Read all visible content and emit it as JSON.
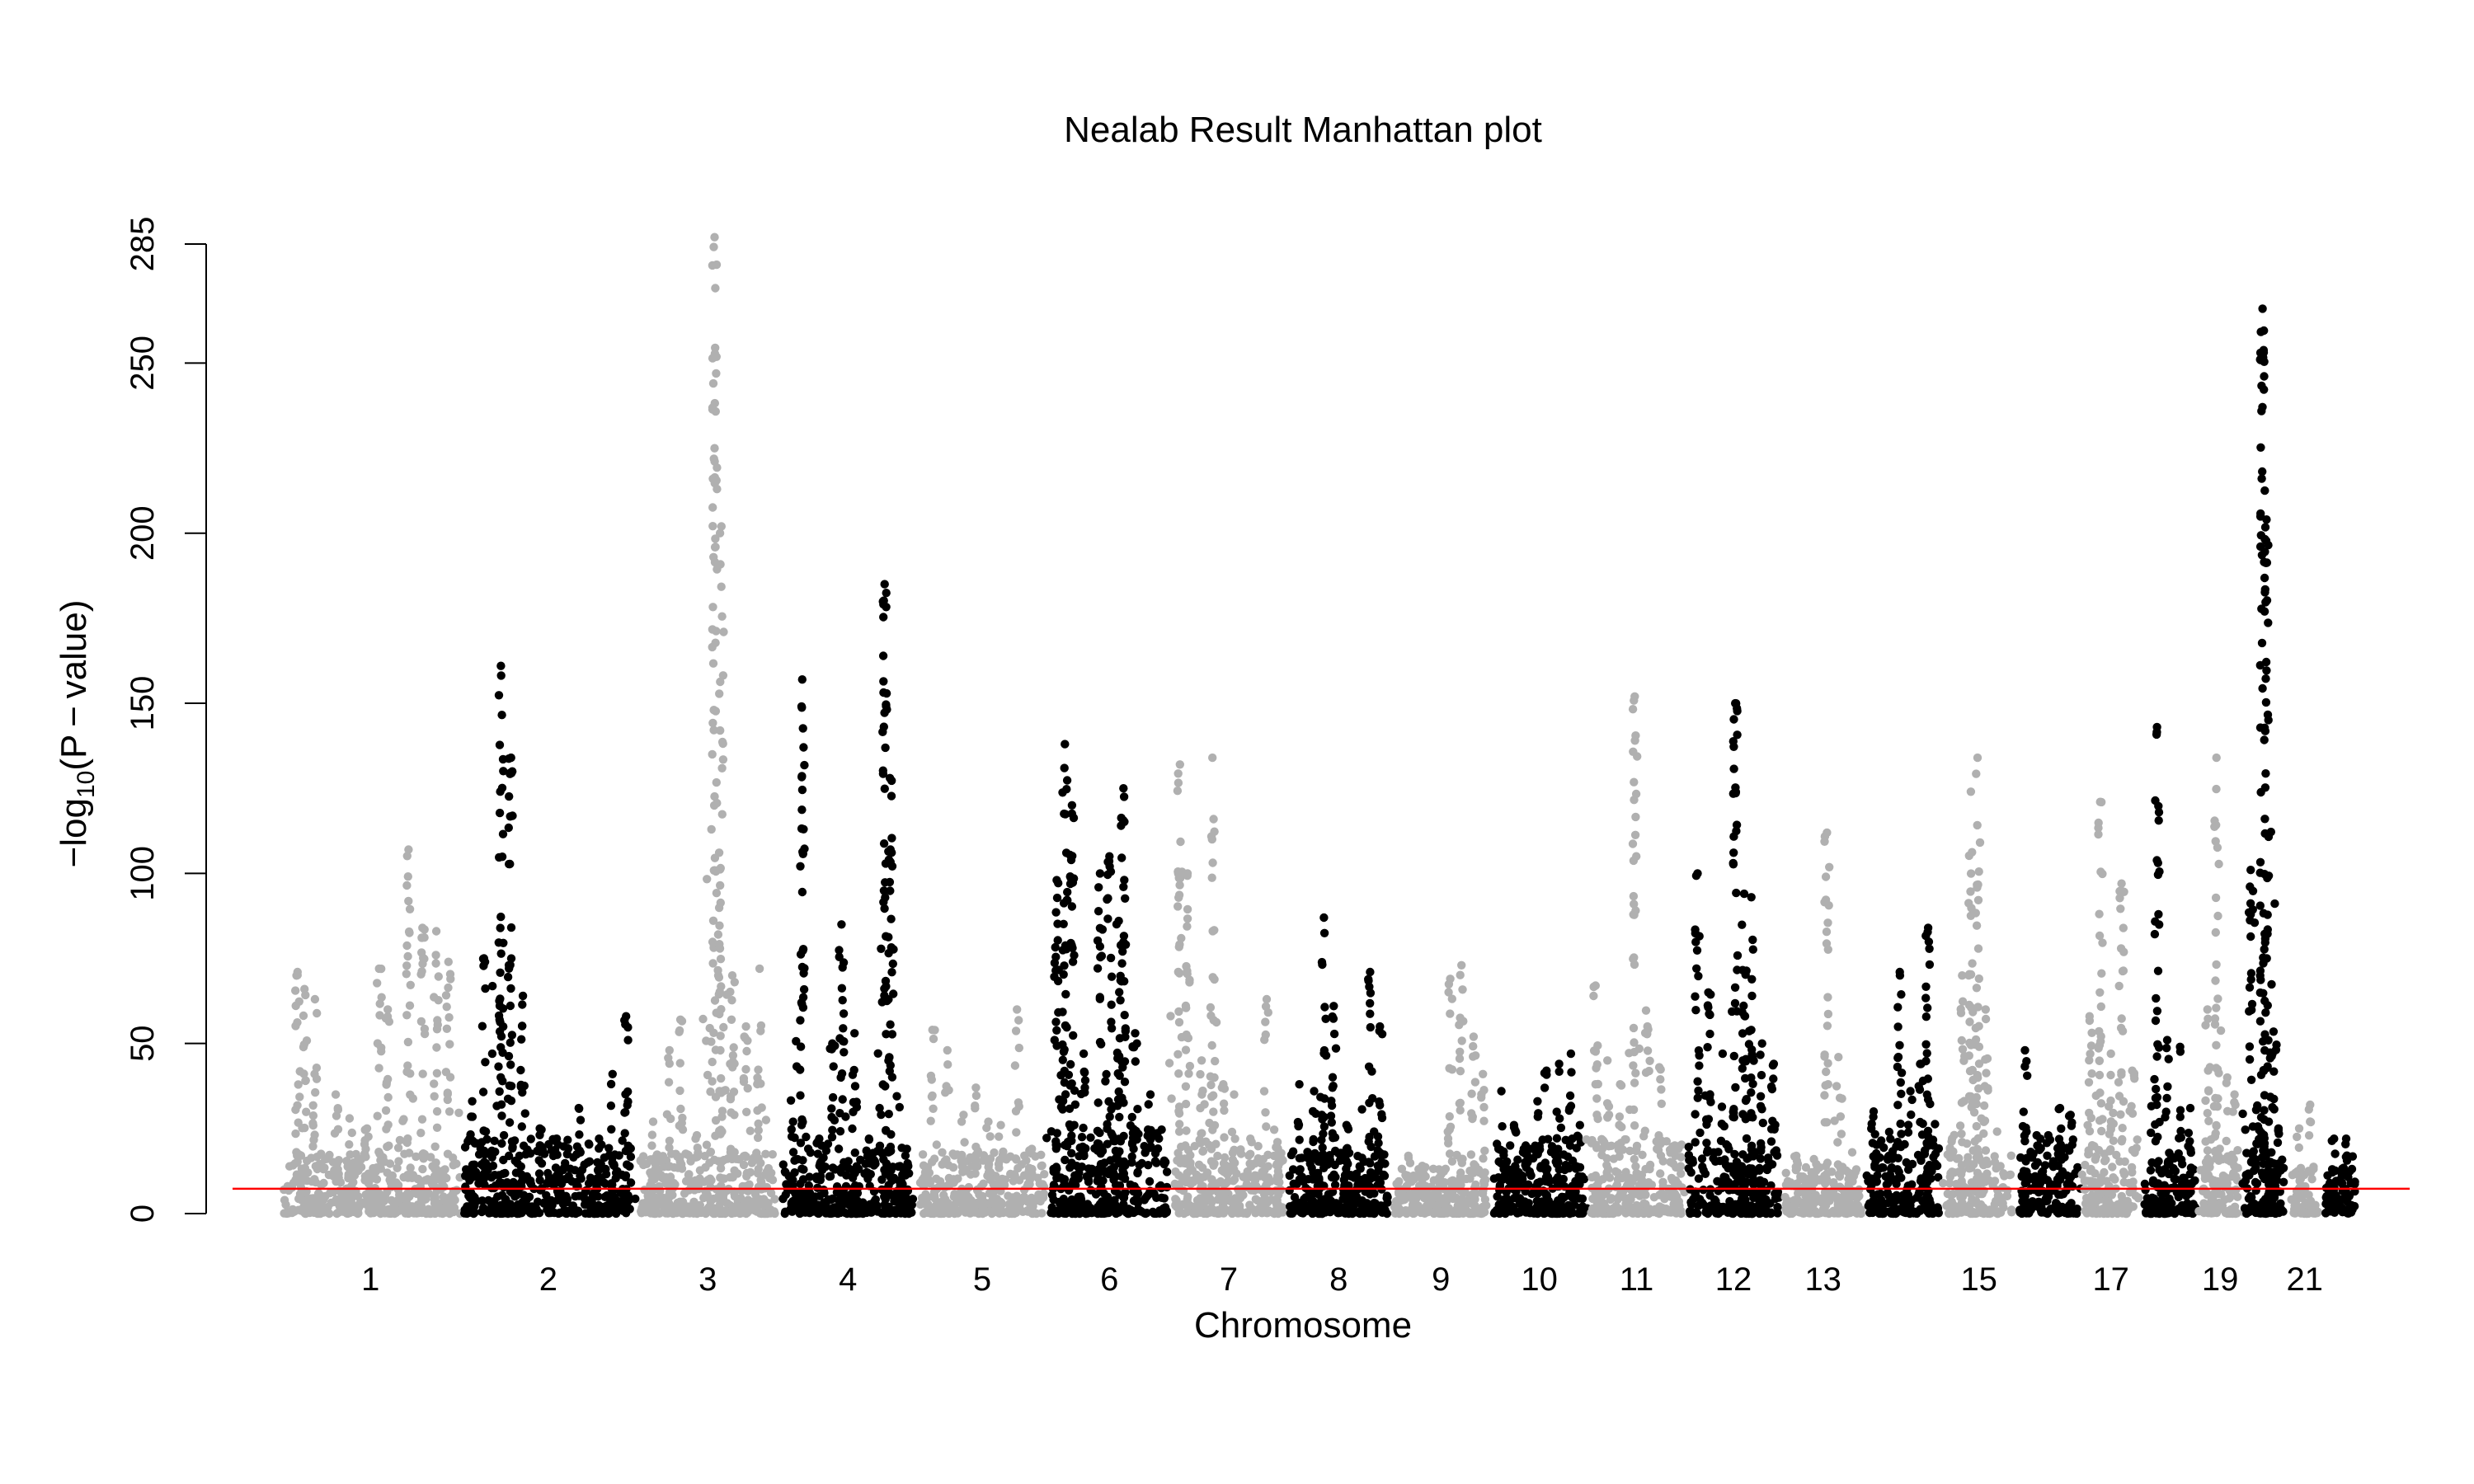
{
  "chart_data": {
    "type": "scatter",
    "subtype": "manhattan",
    "title": "Nealab Result Manhattan plot",
    "xlabel": "Chromosome",
    "ylabel": {
      "prefix": "−log",
      "subscript": "10",
      "suffix": "(P − value)"
    },
    "ylim": [
      0,
      285
    ],
    "yticks": [
      0,
      50,
      100,
      150,
      200,
      250,
      285
    ],
    "grid": false,
    "legend": "none",
    "colors": {
      "odd": "#b0b0b0",
      "even": "#000000",
      "threshold": "#ff0000"
    },
    "threshold": 7.3,
    "xtick_labels": [
      "1",
      "2",
      "3",
      "4",
      "5",
      "6",
      "7",
      "8",
      "9",
      "10",
      "11",
      "12",
      "13",
      "15",
      "17",
      "19",
      "21"
    ],
    "chromosomes": [
      {
        "chr": "1",
        "base": 18,
        "peaks": [
          [
            0.08,
            71
          ],
          [
            0.12,
            66
          ],
          [
            0.18,
            63
          ],
          [
            0.3,
            35
          ],
          [
            0.38,
            28
          ],
          [
            0.48,
            25
          ],
          [
            0.55,
            72
          ],
          [
            0.6,
            60
          ],
          [
            0.72,
            107
          ],
          [
            0.8,
            84
          ],
          [
            0.88,
            83
          ],
          [
            0.95,
            74
          ]
        ]
      },
      {
        "chr": "2",
        "base": 22,
        "peaks": [
          [
            0.05,
            33
          ],
          [
            0.12,
            75
          ],
          [
            0.22,
            161
          ],
          [
            0.28,
            134
          ],
          [
            0.35,
            64
          ],
          [
            0.45,
            25
          ],
          [
            0.55,
            22
          ],
          [
            0.68,
            31
          ],
          [
            0.8,
            22
          ],
          [
            0.88,
            41
          ],
          [
            0.96,
            58
          ]
        ]
      },
      {
        "chr": "3",
        "base": 18,
        "peaks": [
          [
            0.1,
            27
          ],
          [
            0.22,
            48
          ],
          [
            0.3,
            57
          ],
          [
            0.42,
            23
          ],
          [
            0.55,
            287
          ],
          [
            0.6,
            202
          ],
          [
            0.68,
            70
          ],
          [
            0.78,
            55
          ],
          [
            0.88,
            72
          ]
        ]
      },
      {
        "chr": "4",
        "base": 20,
        "peaks": [
          [
            0.08,
            27
          ],
          [
            0.15,
            157
          ],
          [
            0.28,
            22
          ],
          [
            0.38,
            50
          ],
          [
            0.45,
            85
          ],
          [
            0.55,
            53
          ],
          [
            0.66,
            22
          ],
          [
            0.78,
            185
          ],
          [
            0.82,
            128
          ],
          [
            0.95,
            19
          ]
        ]
      },
      {
        "chr": "5",
        "base": 18,
        "peaks": [
          [
            0.1,
            54
          ],
          [
            0.22,
            48
          ],
          [
            0.35,
            29
          ],
          [
            0.45,
            37
          ],
          [
            0.55,
            27
          ],
          [
            0.65,
            26
          ],
          [
            0.78,
            60
          ],
          [
            0.9,
            19
          ]
        ]
      },
      {
        "chr": "6",
        "base": 25,
        "peaks": [
          [
            0.05,
            98
          ],
          [
            0.12,
            138
          ],
          [
            0.18,
            120
          ],
          [
            0.28,
            47
          ],
          [
            0.42,
            100
          ],
          [
            0.5,
            105
          ],
          [
            0.58,
            86
          ],
          [
            0.62,
            125
          ],
          [
            0.72,
            53
          ],
          [
            0.85,
            35
          ]
        ]
      },
      {
        "chr": "7",
        "base": 22,
        "peaks": [
          [
            0.05,
            132
          ],
          [
            0.12,
            100
          ],
          [
            0.25,
            45
          ],
          [
            0.35,
            134
          ],
          [
            0.45,
            38
          ],
          [
            0.55,
            35
          ],
          [
            0.7,
            22
          ],
          [
            0.85,
            63
          ],
          [
            0.95,
            21
          ]
        ]
      },
      {
        "chr": "8",
        "base": 20,
        "peaks": [
          [
            0.1,
            38
          ],
          [
            0.25,
            36
          ],
          [
            0.35,
            87
          ],
          [
            0.45,
            61
          ],
          [
            0.58,
            26
          ],
          [
            0.7,
            10
          ],
          [
            0.82,
            71
          ],
          [
            0.92,
            55
          ]
        ]
      },
      {
        "chr": "9",
        "base": 14,
        "peaks": [
          [
            0.15,
            17
          ],
          [
            0.3,
            14
          ],
          [
            0.48,
            13
          ],
          [
            0.6,
            69
          ],
          [
            0.72,
            73
          ],
          [
            0.85,
            52
          ],
          [
            0.95,
            41
          ]
        ]
      },
      {
        "chr": "10",
        "base": 22,
        "peaks": [
          [
            0.08,
            36
          ],
          [
            0.22,
            26
          ],
          [
            0.35,
            20
          ],
          [
            0.48,
            33
          ],
          [
            0.58,
            42
          ],
          [
            0.72,
            44
          ],
          [
            0.85,
            47
          ],
          [
            0.95,
            26
          ]
        ]
      },
      {
        "chr": "11",
        "base": 22,
        "peaks": [
          [
            0.05,
            67
          ],
          [
            0.18,
            45
          ],
          [
            0.32,
            38
          ],
          [
            0.48,
            152
          ],
          [
            0.62,
            55
          ],
          [
            0.75,
            43
          ],
          [
            0.92,
            20
          ]
        ]
      },
      {
        "chr": "12",
        "base": 22,
        "peaks": [
          [
            0.1,
            100
          ],
          [
            0.22,
            65
          ],
          [
            0.38,
            47
          ],
          [
            0.52,
            150
          ],
          [
            0.62,
            94
          ],
          [
            0.7,
            93
          ],
          [
            0.82,
            50
          ],
          [
            0.95,
            44
          ]
        ]
      },
      {
        "chr": "13",
        "base": 14,
        "peaks": [
          [
            0.15,
            17
          ],
          [
            0.38,
            16
          ],
          [
            0.55,
            112
          ],
          [
            0.72,
            34
          ],
          [
            0.88,
            18
          ]
        ]
      },
      {
        "chr": "14",
        "base": 22,
        "peaks": [
          [
            0.08,
            30
          ],
          [
            0.3,
            24
          ],
          [
            0.45,
            71
          ],
          [
            0.6,
            36
          ],
          [
            0.75,
            44
          ],
          [
            0.85,
            84
          ]
        ]
      },
      {
        "chr": "15",
        "base": 18,
        "peaks": [
          [
            0.1,
            22
          ],
          [
            0.25,
            70
          ],
          [
            0.38,
            124
          ],
          [
            0.48,
            134
          ],
          [
            0.6,
            60
          ]
        ]
      },
      {
        "chr": "16",
        "base": 22,
        "peaks": [
          [
            0.1,
            48
          ],
          [
            0.3,
            23
          ],
          [
            0.5,
            23
          ],
          [
            0.7,
            31
          ],
          [
            0.88,
            29
          ]
        ]
      },
      {
        "chr": "17",
        "base": 22,
        "peaks": [
          [
            0.1,
            58
          ],
          [
            0.3,
            121
          ],
          [
            0.5,
            47
          ],
          [
            0.7,
            97
          ],
          [
            0.9,
            42
          ]
        ]
      },
      {
        "chr": "18",
        "base": 16,
        "peaks": [
          [
            0.25,
            143
          ],
          [
            0.45,
            51
          ],
          [
            0.7,
            49
          ],
          [
            0.9,
            31
          ]
        ]
      },
      {
        "chr": "19",
        "base": 20,
        "peaks": [
          [
            0.15,
            60
          ],
          [
            0.4,
            134
          ],
          [
            0.7,
            40
          ],
          [
            0.9,
            35
          ]
        ]
      },
      {
        "chr": "20",
        "base": 25,
        "peaks": [
          [
            0.15,
            101
          ],
          [
            0.45,
            266
          ],
          [
            0.55,
            204
          ],
          [
            0.7,
            47
          ],
          [
            0.85,
            25
          ]
        ]
      },
      {
        "chr": "21",
        "base": 14,
        "peaks": [
          [
            0.3,
            25
          ],
          [
            0.7,
            32
          ]
        ]
      },
      {
        "chr": "22",
        "base": 18,
        "peaks": [
          [
            0.3,
            22
          ],
          [
            0.7,
            22
          ]
        ]
      }
    ]
  }
}
